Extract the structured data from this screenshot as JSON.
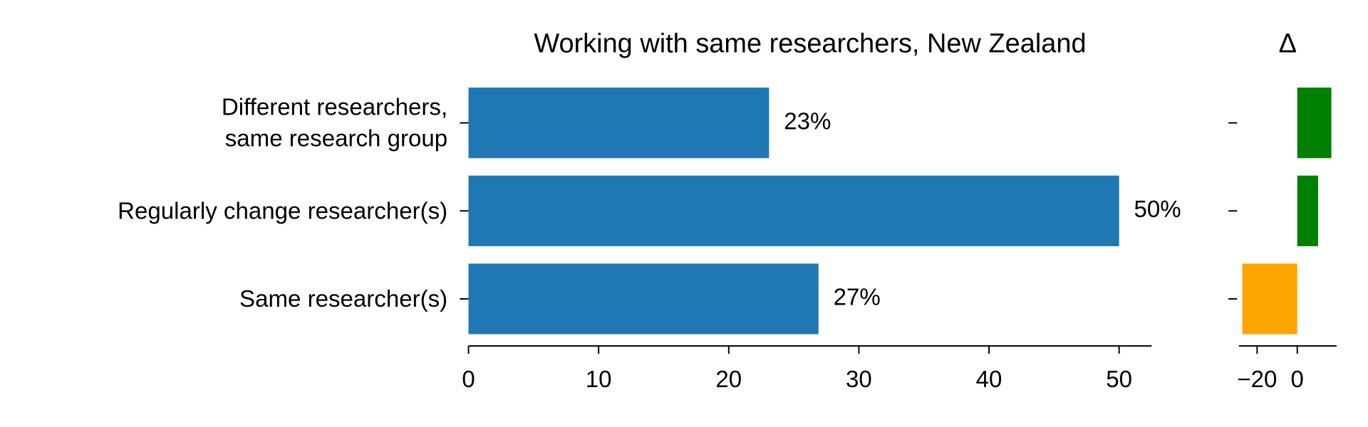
{
  "chart_data": [
    {
      "type": "hbar",
      "title": "Working with same researchers, New Zealand",
      "categories": [
        "Different researchers,\nsame research group",
        "Regularly change researcher(s)",
        "Same researcher(s)"
      ],
      "values": [
        23.1,
        50.0,
        26.9
      ],
      "value_labels": [
        "23%",
        "50%",
        "27%"
      ],
      "color": "#1f77b4",
      "xlim": [
        0,
        52.5
      ],
      "xticks": [
        0,
        10,
        20,
        30,
        40,
        50
      ]
    },
    {
      "type": "hbar",
      "title": "Δ",
      "categories": [
        null,
        null,
        null
      ],
      "values": [
        17.0,
        10.4,
        -27.4
      ],
      "colors": [
        "#008000",
        "#008000",
        "#ffa500"
      ],
      "xlim": [
        -29.1,
        19.6
      ],
      "xticks": [
        {
          "value": -20,
          "label": "−20"
        },
        0
      ]
    }
  ]
}
